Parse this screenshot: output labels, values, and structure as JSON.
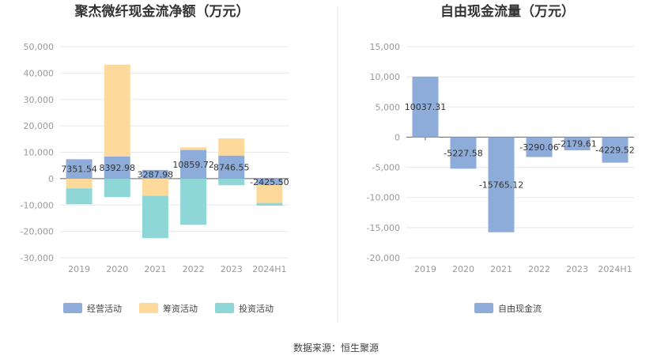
{
  "chart_data": [
    {
      "type": "bar",
      "stacked": true,
      "title": "聚杰微纤现金流净额（万元）",
      "categories": [
        "2019",
        "2020",
        "2021",
        "2022",
        "2023",
        "2024H1"
      ],
      "ylim": [
        -30000,
        50000
      ],
      "yticks": [
        "50,000",
        "40,000",
        "30,000",
        "20,000",
        "10,000",
        "0",
        "-10,000",
        "-20,000",
        "-30,000"
      ],
      "ytick_values": [
        50000,
        40000,
        30000,
        20000,
        10000,
        0,
        -10000,
        -20000,
        -30000
      ],
      "grid": true,
      "series": [
        {
          "name": "经营活动",
          "color": "#8eacd9",
          "values": [
            7351.54,
            8392.98,
            3287.98,
            10859.72,
            8746.55,
            -2425.5
          ]
        },
        {
          "name": "筹资活动",
          "color": "#fdd99b",
          "values": [
            -3700,
            34800,
            -6500,
            1000,
            6500,
            -6800
          ]
        },
        {
          "name": "投资活动",
          "color": "#8fd6d6",
          "values": [
            -6000,
            -7000,
            -16000,
            -17500,
            -2500,
            -1000
          ]
        }
      ],
      "data_labels": [
        "7351.54",
        "8392.98",
        "3287.98",
        "10859.72",
        "8746.55",
        "-2425.50"
      ],
      "legend_position": "bottom"
    },
    {
      "type": "bar",
      "title": "自由现金流量（万元）",
      "categories": [
        "2019",
        "2020",
        "2021",
        "2022",
        "2023",
        "2024H1"
      ],
      "ylim": [
        -20000,
        15000
      ],
      "yticks": [
        "15,000",
        "10,000",
        "5,000",
        "0",
        "-5,000",
        "-10,000",
        "-15,000",
        "-20,000"
      ],
      "ytick_values": [
        15000,
        10000,
        5000,
        0,
        -5000,
        -10000,
        -15000,
        -20000
      ],
      "grid": true,
      "series": [
        {
          "name": "自由现金流",
          "color": "#8eacd9",
          "values": [
            10037.31,
            -5227.58,
            -15765.12,
            -3290.06,
            -2179.61,
            -4229.52
          ]
        }
      ],
      "data_labels": [
        "10037.31",
        "-5227.58",
        "-15765.12",
        "-3290.06",
        "-2179.61",
        "-4229.52"
      ],
      "legend_position": "bottom"
    }
  ],
  "footer": {
    "source": "数据来源：恒生聚源"
  }
}
